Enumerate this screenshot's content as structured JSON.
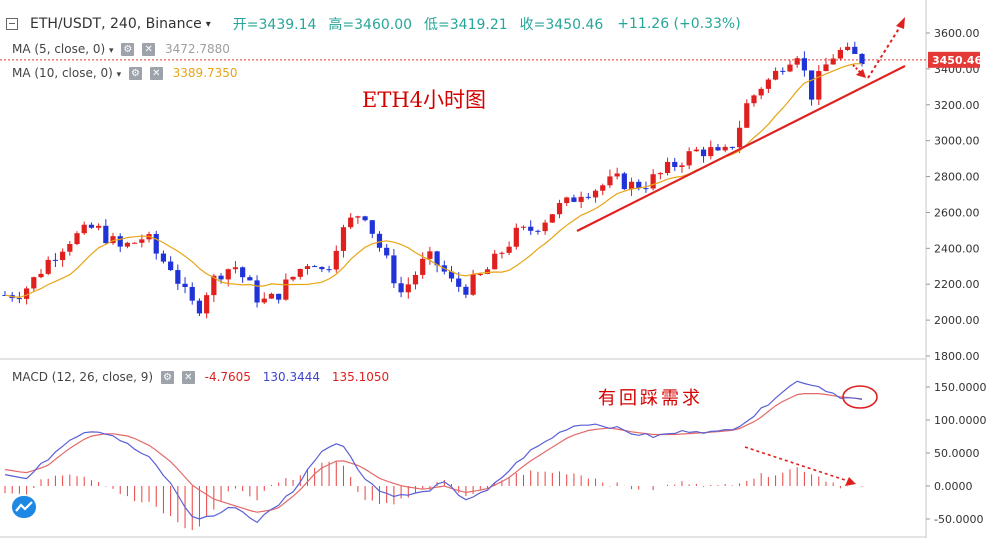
{
  "header": {
    "symbol": "ETH/USDT, 240, Binance",
    "open": "开=3439.14",
    "high": "高=3460.00",
    "low": "低=3419.21",
    "close": "收=3450.46",
    "change": "+11.26 (+0.33%)"
  },
  "indicators": {
    "ma5": {
      "label": "MA (5, close, 0)",
      "value": "3472.7880",
      "color": "#9e9e9e"
    },
    "ma10": {
      "label": "MA (10, close, 0)",
      "value": "3389.7350",
      "color": "#e8a415"
    },
    "macd": {
      "label": "MACD (12, 26, close, 9)",
      "hist": "-4.7605",
      "macd": "130.3444",
      "signal": "135.1050"
    }
  },
  "annotations": {
    "title": "ETH4小时图",
    "macd_note": "有回踩需求"
  },
  "colors": {
    "up": "#e0201f",
    "down": "#1f33d8",
    "ma": "#e8a415",
    "macd_line": "#5a5fd6",
    "signal_line": "#e46a6a",
    "hist": "#e8403f",
    "price_line": "#e53935"
  },
  "price_axis": {
    "ticks": [
      "3600.00",
      "3400.00",
      "3200.00",
      "3000.00",
      "2800.00",
      "2600.00",
      "2400.00",
      "2200.00",
      "2000.00",
      "1800.00"
    ],
    "current": "3450.46"
  },
  "macd_axis": {
    "ticks": [
      "150.0000",
      "100.0000",
      "50.0000",
      "0.0000",
      "-50.0000"
    ]
  },
  "chart_data": [
    {
      "type": "candlestick",
      "current_price": 3450.46,
      "y_range": [
        1800,
        3650
      ],
      "price_samples": [
        2140,
        2150,
        2200,
        2300,
        2380,
        2450,
        2480,
        2520,
        2460,
        2400,
        2430,
        2470,
        2350,
        2300,
        2150,
        2050,
        2200,
        2280,
        2300,
        2200,
        2100,
        2120,
        2200,
        2280,
        2350,
        2250,
        2450,
        2550,
        2620,
        2450,
        2300,
        2150,
        2250,
        2350,
        2300,
        2200,
        2180,
        2230,
        2300,
        2400,
        2480,
        2500,
        2550,
        2620,
        2650,
        2720,
        2730,
        2760,
        2780,
        2750,
        2760,
        2800,
        2850,
        2900,
        2940,
        2950,
        2900,
        3000,
        3200,
        3300,
        3350,
        3450,
        3500,
        3250,
        3400,
        3500,
        3480,
        3450
      ]
    },
    {
      "type": "macd",
      "y_range": [
        -60,
        180
      ],
      "macd_samples": [
        20,
        10,
        40,
        70,
        85,
        80,
        60,
        40,
        0,
        -50,
        -45,
        -30,
        -55,
        -30,
        0,
        50,
        70,
        20,
        -10,
        -15,
        -10,
        5,
        -20,
        -10,
        20,
        50,
        70,
        90,
        95,
        90,
        80,
        75,
        80,
        85,
        80,
        90,
        110,
        140,
        160,
        150,
        135,
        130
      ],
      "signal_samples": [
        25,
        20,
        30,
        55,
        75,
        80,
        75,
        60,
        35,
        0,
        -20,
        -30,
        -40,
        -35,
        -10,
        25,
        40,
        30,
        10,
        0,
        -5,
        0,
        -10,
        -5,
        10,
        35,
        55,
        75,
        85,
        88,
        82,
        78,
        78,
        80,
        82,
        85,
        100,
        125,
        140,
        140,
        135,
        132
      ]
    }
  ]
}
